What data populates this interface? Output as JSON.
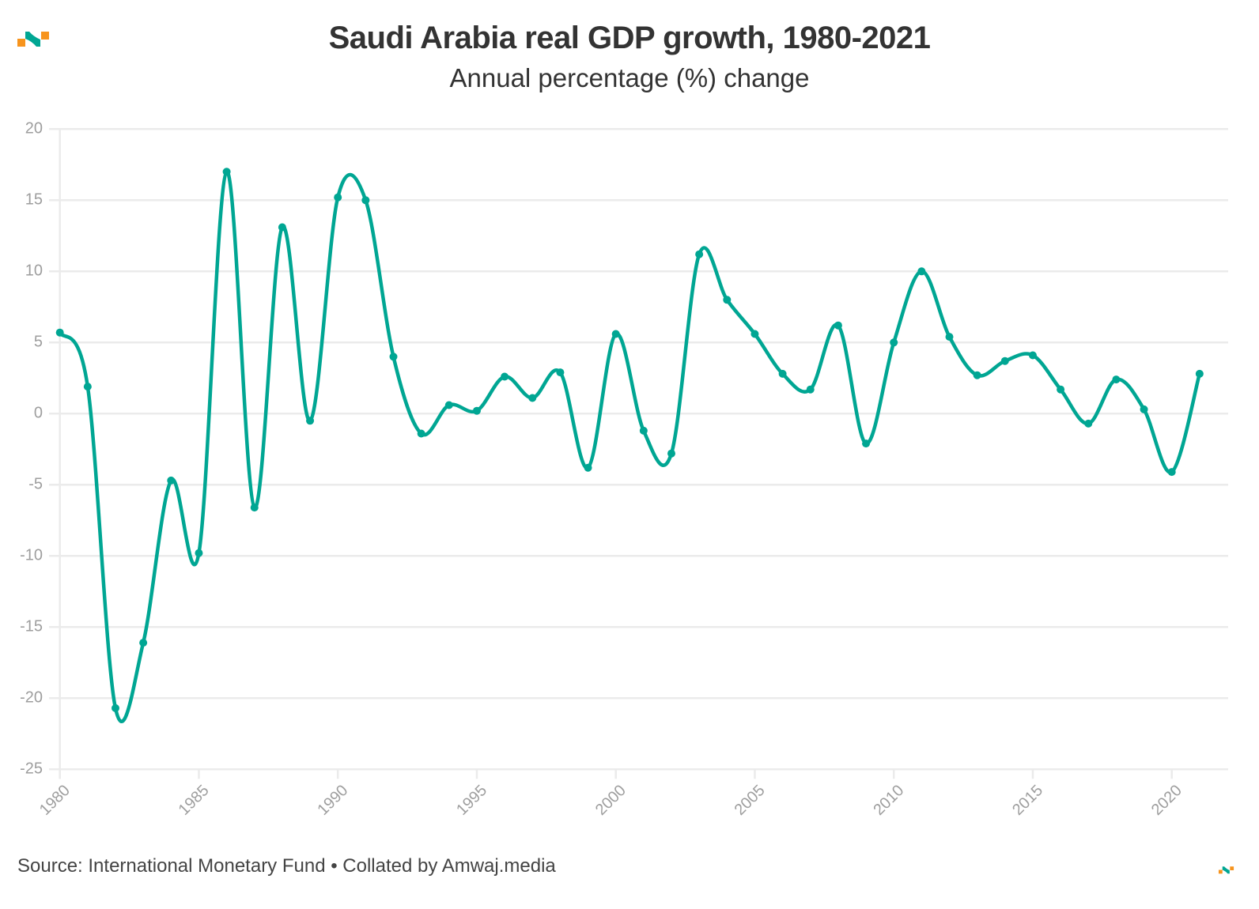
{
  "header": {
    "title": "Saudi Arabia real GDP growth, 1980-2021",
    "subtitle": "Annual percentage (%) change"
  },
  "footer": {
    "source": "Source: International Monetary Fund • Collated by Amwaj.media"
  },
  "branding": {
    "logo": "amwaj-logo-icon",
    "logo_colors": {
      "teal": "#00a693",
      "orange": "#f7941d"
    }
  },
  "colors": {
    "line": "#00a693",
    "grid": "#ebebeb",
    "tick_text": "#9e9e9e",
    "title_text": "#333333"
  },
  "chart_data": {
    "type": "line",
    "title": "Saudi Arabia real GDP growth, 1980-2021",
    "subtitle": "Annual percentage (%) change",
    "xlabel": "",
    "ylabel": "",
    "x": [
      1980,
      1981,
      1982,
      1983,
      1984,
      1985,
      1986,
      1987,
      1988,
      1989,
      1990,
      1991,
      1992,
      1993,
      1994,
      1995,
      1996,
      1997,
      1998,
      1999,
      2000,
      2001,
      2002,
      2003,
      2004,
      2005,
      2006,
      2007,
      2008,
      2009,
      2010,
      2011,
      2012,
      2013,
      2014,
      2015,
      2016,
      2017,
      2018,
      2019,
      2020,
      2021
    ],
    "series": [
      {
        "name": "Real GDP growth (%)",
        "values": [
          5.7,
          1.9,
          -20.7,
          -16.1,
          -4.7,
          -9.8,
          17.0,
          -6.6,
          13.1,
          -0.5,
          15.2,
          15.0,
          4.0,
          -1.4,
          0.6,
          0.2,
          2.6,
          1.1,
          2.9,
          -3.8,
          5.6,
          -1.2,
          -2.8,
          11.2,
          8.0,
          5.6,
          2.8,
          1.7,
          6.2,
          -2.1,
          5.0,
          10.0,
          5.4,
          2.7,
          3.7,
          4.1,
          1.7,
          -0.7,
          2.4,
          0.3,
          -4.1,
          2.8
        ]
      }
    ],
    "xlim": [
      1980,
      2022
    ],
    "ylim": [
      -25,
      20
    ],
    "yticks": [
      "20",
      "15",
      "10",
      "5",
      "0",
      "-5",
      "-10",
      "-15",
      "-20",
      "-25"
    ],
    "ytick_values": [
      20,
      15,
      10,
      5,
      0,
      -5,
      -10,
      -15,
      -20,
      -25
    ],
    "xticks": [
      "1980",
      "1985",
      "1990",
      "1995",
      "2000",
      "2005",
      "2010",
      "2015",
      "2020"
    ],
    "xtick_values": [
      1980,
      1985,
      1990,
      1995,
      2000,
      2005,
      2010,
      2015,
      2020
    ],
    "grid": true,
    "legend": "none",
    "curve": "smooth",
    "markers": true
  }
}
